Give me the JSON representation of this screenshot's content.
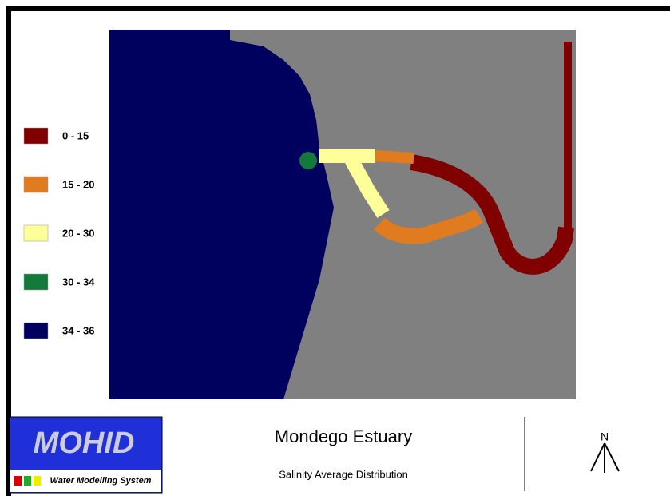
{
  "map": {
    "title": "Mondego Estuary",
    "subtitle": "Salinity Average Distribution",
    "legend": [
      {
        "label": "0 - 15",
        "color": "#800000"
      },
      {
        "label": "15 - 20",
        "color": "#e07b20"
      },
      {
        "label": "20 - 30",
        "color": "#ffff99"
      },
      {
        "label": "30 - 34",
        "color": "#147a3c"
      },
      {
        "label": "34 - 36",
        "color": "#00005e"
      }
    ],
    "north": "N",
    "logo": {
      "name": "MOHID",
      "tagline": "Water Modelling System"
    }
  }
}
